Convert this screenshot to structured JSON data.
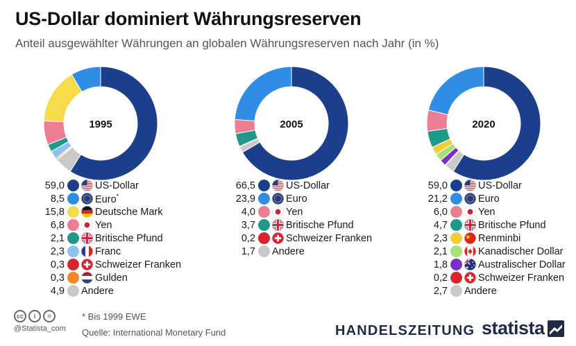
{
  "header": {
    "title": "US-Dollar dominiert Währungsreserven",
    "subtitle": "Anteil ausgewählter Währungen an globalen Währungsreserven nach Jahr (in %)"
  },
  "colors": {
    "US-Dollar": "#1b3f8b",
    "Euro": "#2f8de4",
    "Deutsche Mark": "#f6dc4a",
    "Yen": "#ec7d93",
    "Britische Pfund": "#1f9a8a",
    "Franc": "#8dc3f0",
    "Schweizer Franken": "#d9232d",
    "Gulden": "#f08a24",
    "Andere": "#c9c9c9",
    "Renminbi": "#f4cd3a",
    "Kanadischer Dollar": "#a8e07a",
    "Australischer Dollar": "#7a2fc9"
  },
  "chart_data": [
    {
      "type": "pie",
      "title": "1995",
      "donut": true,
      "categories": [
        "US-Dollar",
        "Euro*",
        "Deutsche Mark",
        "Yen",
        "Britische Pfund",
        "Franc",
        "Schweizer Franken",
        "Gulden",
        "Andere"
      ],
      "values": [
        59.0,
        8.5,
        15.8,
        6.8,
        2.1,
        2.3,
        0.3,
        0.3,
        4.9
      ],
      "value_labels": [
        "59,0",
        "8,5",
        "15,8",
        "6,8",
        "2,1",
        "2,3",
        "0,3",
        "0,3",
        "4,9"
      ],
      "legend_labels": [
        "US-Dollar",
        "Euro",
        "Deutsche Mark",
        "Yen",
        "Britische Pfund",
        "Franc",
        "Schweizer Franken",
        "Gulden",
        "Andere"
      ],
      "flags": [
        "us",
        "eu",
        "de",
        "jp",
        "uk",
        "fr",
        "ch",
        "nl",
        "none"
      ],
      "color_keys": [
        "US-Dollar",
        "Euro",
        "Deutsche Mark",
        "Yen",
        "Britische Pfund",
        "Franc",
        "Schweizer Franken",
        "Gulden",
        "Andere"
      ]
    },
    {
      "type": "pie",
      "title": "2005",
      "donut": true,
      "categories": [
        "US-Dollar",
        "Euro",
        "Yen",
        "Britische Pfund",
        "Schweizer Franken",
        "Andere"
      ],
      "values": [
        66.5,
        23.9,
        4.0,
        3.7,
        0.2,
        1.7
      ],
      "value_labels": [
        "66,5",
        "23,9",
        "4,0",
        "3,7",
        "0,2",
        "1,7"
      ],
      "legend_labels": [
        "US-Dollar",
        "Euro",
        "Yen",
        "Britische Pfund",
        "Schweizer Franken",
        "Andere"
      ],
      "flags": [
        "us",
        "eu",
        "jp",
        "uk",
        "ch",
        "none"
      ],
      "color_keys": [
        "US-Dollar",
        "Euro",
        "Yen",
        "Britische Pfund",
        "Schweizer Franken",
        "Andere"
      ]
    },
    {
      "type": "pie",
      "title": "2020",
      "donut": true,
      "categories": [
        "US-Dollar",
        "Euro",
        "Yen",
        "Britische Pfund",
        "Renminbi",
        "Kanadischer Dollar",
        "Australischer Dollar",
        "Schweizer Franken",
        "Andere"
      ],
      "values": [
        59.0,
        21.2,
        6.0,
        4.7,
        2.3,
        2.1,
        1.8,
        0.2,
        2.7
      ],
      "value_labels": [
        "59,0",
        "21,2",
        "6,0",
        "4,7",
        "2,3",
        "2,1",
        "1,8",
        "0,2",
        "2,7"
      ],
      "legend_labels": [
        "US-Dollar",
        "Euro",
        "Yen",
        "Britische Pfund",
        "Renminbi",
        "Kanadischer Dollar",
        "Australischer Dollar",
        "Schweizer Franken",
        "Andere"
      ],
      "flags": [
        "us",
        "eu",
        "jp",
        "uk",
        "cn",
        "ca",
        "au",
        "ch",
        "none"
      ],
      "color_keys": [
        "US-Dollar",
        "Euro",
        "Yen",
        "Britische Pfund",
        "Renminbi",
        "Kanadischer Dollar",
        "Australischer Dollar",
        "Schweizer Franken",
        "Andere"
      ]
    }
  ],
  "footer": {
    "footnote": "* Bis 1999 EWE",
    "source": "Quelle: International Monetary Fund",
    "credit": "@Statista_com",
    "cc_icons": [
      "cc-icon",
      "by-icon",
      "nd-icon"
    ],
    "cc_glyphs": [
      "cc",
      "i",
      "="
    ],
    "publisher": "HANDELSZEITUNG",
    "brand": "statista"
  }
}
